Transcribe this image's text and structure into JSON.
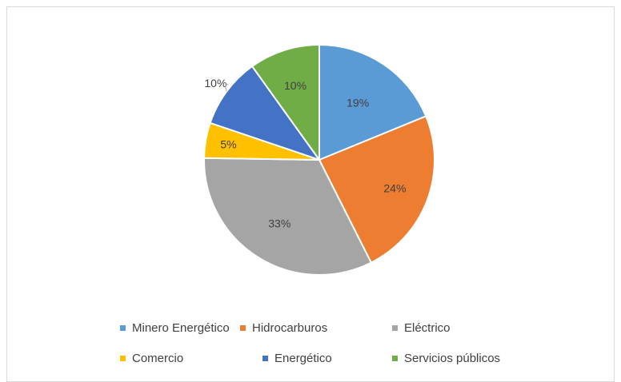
{
  "chart_data": {
    "type": "pie",
    "title": "",
    "categories": [
      "Minero Energético",
      "Hidrocarburos",
      "Eléctrico",
      "Comercio",
      "Energético",
      "Servicios públicos"
    ],
    "values": [
      19,
      24,
      33,
      5,
      10,
      10
    ],
    "labels": [
      "19%",
      "24%",
      "33%",
      "5%",
      "10%",
      "10%"
    ],
    "colors": [
      "#5B9BD5",
      "#ED7D31",
      "#A5A5A5",
      "#FFC000",
      "#4472C4",
      "#70AD47"
    ],
    "start_angle": "12 o'clock",
    "direction": "clockwise",
    "legend_position": "bottom"
  },
  "legend": {
    "items": [
      {
        "label": "Minero Energético",
        "color": "#5B9BD5"
      },
      {
        "label": "Hidrocarburos",
        "color": "#ED7D31"
      },
      {
        "label": "Eléctrico",
        "color": "#A5A5A5"
      },
      {
        "label": "Comercio",
        "color": "#FFC000"
      },
      {
        "label": "Energético",
        "color": "#4472C4"
      },
      {
        "label": "Servicios públicos",
        "color": "#70AD47"
      }
    ]
  }
}
